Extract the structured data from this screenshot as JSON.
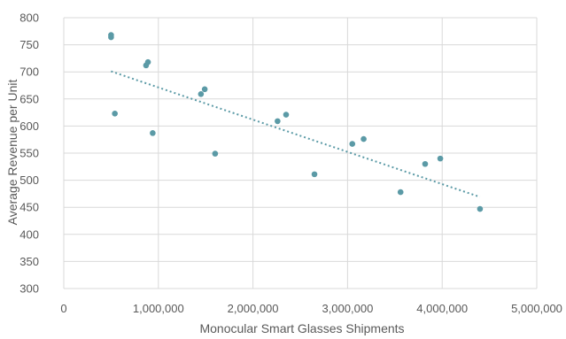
{
  "chart_data": {
    "type": "scatter",
    "xlabel": "Monocular Smart Glasses Shipments",
    "ylabel": "Average Revenue per Unit",
    "xlim": [
      0,
      5000000
    ],
    "ylim": [
      300,
      800
    ],
    "x_ticks": [
      0,
      1000000,
      2000000,
      3000000,
      4000000,
      5000000
    ],
    "x_tick_labels": [
      "0",
      "1,000,000",
      "2,000,000",
      "3,000,000",
      "4,000,000",
      "5,000,000"
    ],
    "y_ticks": [
      300,
      350,
      400,
      450,
      500,
      550,
      600,
      650,
      700,
      750,
      800
    ],
    "y_tick_labels": [
      "300",
      "350",
      "400",
      "450",
      "500",
      "550",
      "600",
      "650",
      "700",
      "750",
      "800"
    ],
    "grid": true,
    "legend": "none",
    "marker_color": "#5b9aa6",
    "trendline": {
      "style": "dotted",
      "from": [
        500000,
        701
      ],
      "to": [
        4400000,
        469
      ]
    },
    "points": [
      {
        "x": 500000,
        "y": 768
      },
      {
        "x": 500000,
        "y": 764
      },
      {
        "x": 540000,
        "y": 623
      },
      {
        "x": 870000,
        "y": 712
      },
      {
        "x": 890000,
        "y": 718
      },
      {
        "x": 940000,
        "y": 587
      },
      {
        "x": 1450000,
        "y": 659
      },
      {
        "x": 1490000,
        "y": 668
      },
      {
        "x": 1600000,
        "y": 549
      },
      {
        "x": 2260000,
        "y": 609
      },
      {
        "x": 2350000,
        "y": 621
      },
      {
        "x": 2650000,
        "y": 511
      },
      {
        "x": 3050000,
        "y": 567
      },
      {
        "x": 3170000,
        "y": 576
      },
      {
        "x": 3560000,
        "y": 478
      },
      {
        "x": 3820000,
        "y": 530
      },
      {
        "x": 3980000,
        "y": 540
      },
      {
        "x": 4400000,
        "y": 447
      }
    ]
  }
}
